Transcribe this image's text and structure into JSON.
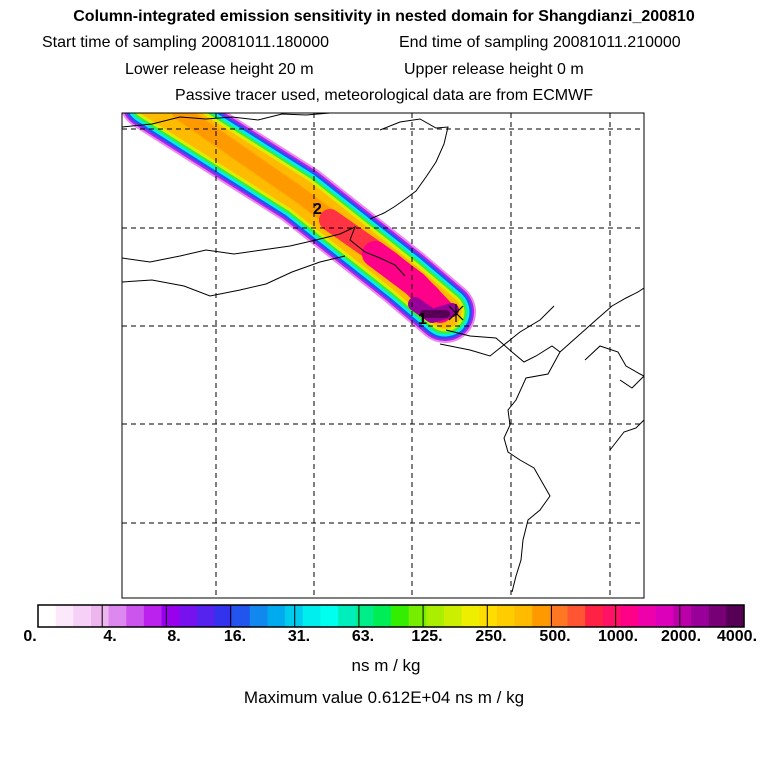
{
  "header": {
    "title": "Column-integrated emission sensitivity in nested domain for Shangdianzi_200810",
    "start_label": "Start time of sampling",
    "start_value": "20081011.180000",
    "end_label": "End time of sampling",
    "end_value": "20081011.210000",
    "lower_label": "Lower release height",
    "lower_value": "20 m",
    "upper_label": "Upper release height",
    "upper_value": "0 m",
    "tracer_note": "Passive tracer used, meteorological data are from ECMWF"
  },
  "map": {
    "point_labels": [
      "1",
      "2"
    ],
    "receptor_marker": "x"
  },
  "colorbar": {
    "tick_labels": [
      "0.",
      "4.",
      "8.",
      "16.",
      "31.",
      "63.",
      "125.",
      "250.",
      "500.",
      "1000.",
      "2000.",
      "4000."
    ],
    "colors": [
      "#ffffff",
      "#fbe9fb",
      "#f6d0f6",
      "#eeb6ee",
      "#dd88ee",
      "#cc55ee",
      "#bb22ee",
      "#9900ee",
      "#7711ee",
      "#5522ee",
      "#3333ee",
      "#2255ee",
      "#1188ee",
      "#00aaee",
      "#00ccee",
      "#00eeee",
      "#00ffee",
      "#00eebb",
      "#00ee88",
      "#00ee55",
      "#33ee00",
      "#77ee00",
      "#aaee00",
      "#ccee00",
      "#eeee00",
      "#ffdd00",
      "#ffcc00",
      "#ffbb00",
      "#ff9900",
      "#ff7722",
      "#ff5533",
      "#ff2244",
      "#ff1166",
      "#ff0088",
      "#ee00aa",
      "#dd00bb",
      "#bb00aa",
      "#990099",
      "#770077",
      "#550055"
    ],
    "units": "ns m / kg",
    "max_text": "Maximum value  0.612E+04 ns m / kg"
  },
  "colors": {
    "plume_outer": "#ee99ee",
    "plume_core": "#ffaa00",
    "plume_peak": "#550055"
  }
}
